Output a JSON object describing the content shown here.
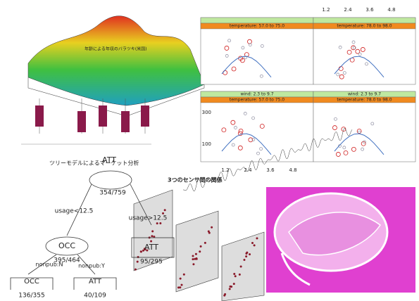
{
  "surface_title": "年齢による年収のバラツキ(米国)",
  "tree_caption": "ツリーモデルによるマーケット分析",
  "sensor_caption": "3つのセンサ間の関係",
  "coplot": {
    "strips": [
      "temperature: 57.0 to 75.0",
      "temperature: 78.0 to 98.0",
      "wind: 2.3 to 9.7",
      "wind: 2.3 to 9.7",
      "temperature: 57.0 to 75.0",
      "temperature: 78.0 to 98.0"
    ],
    "top_ticks": [
      "1.2",
      "2.4",
      "3.6",
      "4.8"
    ],
    "left_ticks": [
      "300",
      "100"
    ],
    "bottom_ticks": [
      "1.2",
      "2.4",
      "3.6",
      "4.8"
    ]
  },
  "tree": {
    "root": {
      "label": "ATT",
      "count": "354/759"
    },
    "left_split": "usage<12.5",
    "right_split": "usage>12.5",
    "left": {
      "label": "OCC",
      "count": "395/464"
    },
    "right": {
      "label": "ATT",
      "count": "95/295"
    },
    "left_left_split": "nonpub:N",
    "left_right_split": "nonpub:Y",
    "left_left": {
      "label": "OCC",
      "count": "136/355"
    },
    "left_right": {
      "label": "ATT",
      "count": "40/109"
    }
  }
}
